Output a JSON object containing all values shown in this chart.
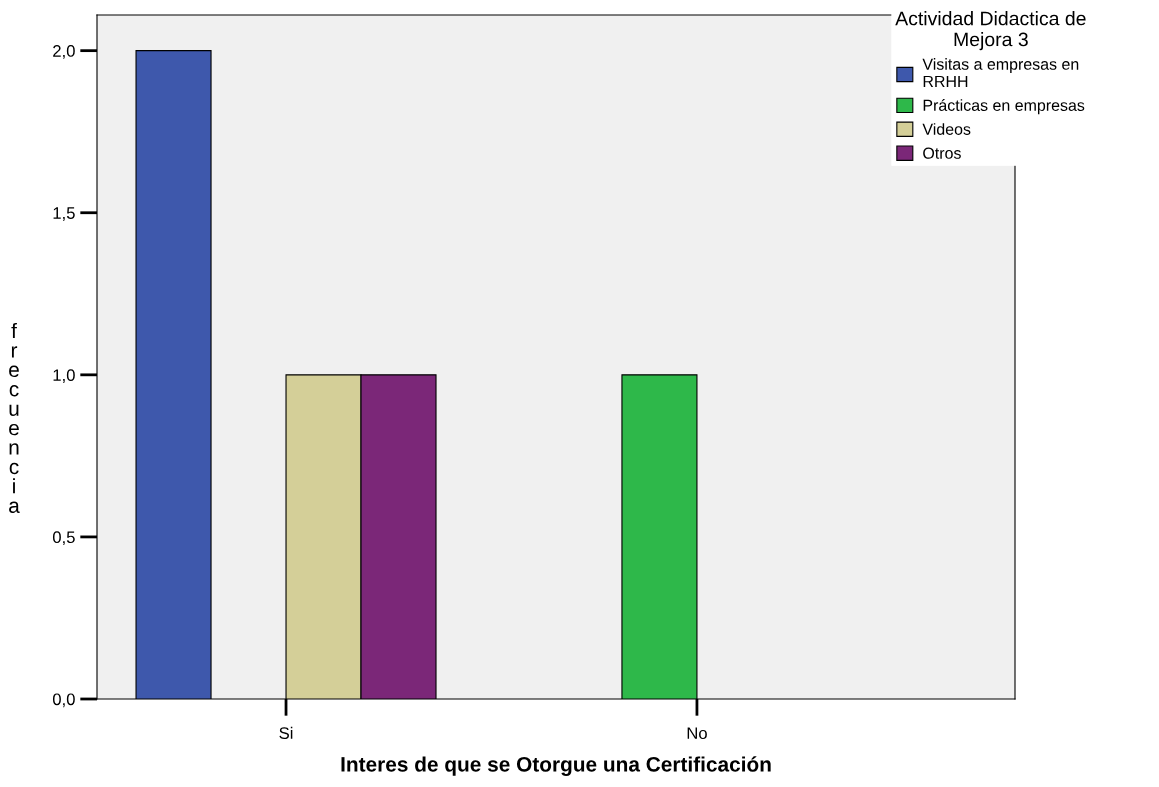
{
  "chart_data": {
    "type": "bar",
    "xlabel": "Interes de que se Otorgue una Certificación",
    "ylabel": "frecuencia",
    "legend_title": "Actividad Didactica de\nMejora 3",
    "categories": [
      "Si",
      "No"
    ],
    "series": [
      {
        "name": "Visitas a empresas en\nRRHH",
        "color": "#3e58ac",
        "values": [
          2,
          null
        ]
      },
      {
        "name": "Prácticas en empresas",
        "color": "#2eb84a",
        "values": [
          null,
          1
        ]
      },
      {
        "name": "Videos",
        "color": "#d4cf98",
        "values": [
          1,
          null
        ]
      },
      {
        "name": "Otros",
        "color": "#7b2778",
        "values": [
          1,
          null
        ]
      }
    ],
    "ylim": [
      0,
      2.11
    ],
    "yticks": [
      {
        "value": 0,
        "label": "0,0"
      },
      {
        "value": 0.5,
        "label": "0,5"
      },
      {
        "value": 1,
        "label": "1,0"
      },
      {
        "value": 1.5,
        "label": "1,5"
      },
      {
        "value": 2,
        "label": "2,0"
      }
    ],
    "grid": false,
    "legend": "top right"
  }
}
